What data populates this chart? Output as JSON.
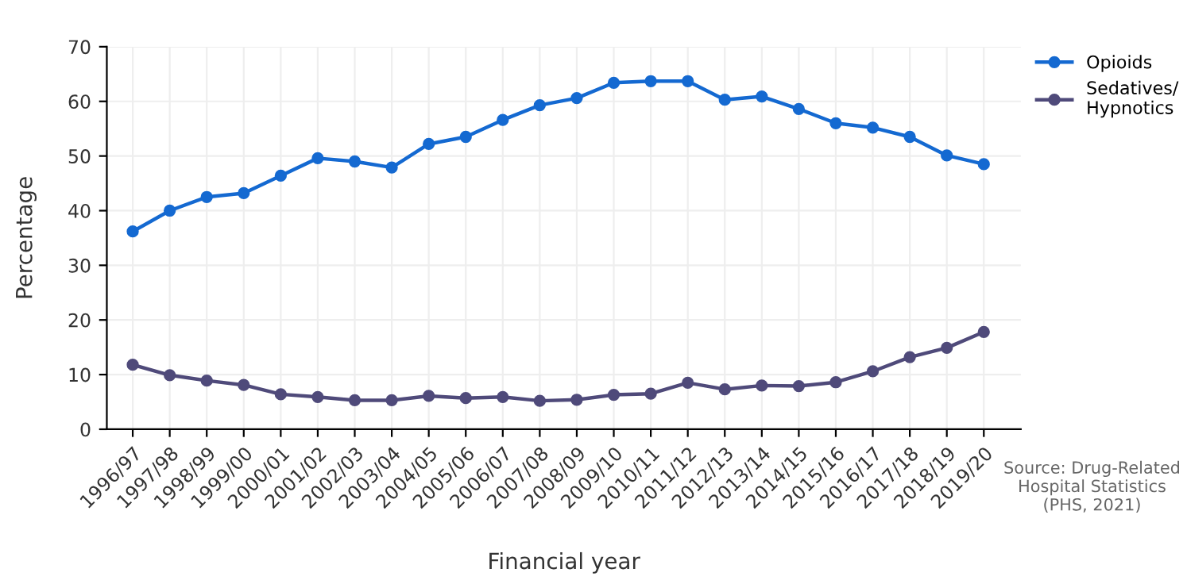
{
  "chart_data": {
    "type": "line",
    "xlabel": "Financial year",
    "ylabel": "Percentage",
    "categories": [
      "1996/97",
      "1997/98",
      "1998/99",
      "1999/00",
      "2000/01",
      "2001/02",
      "2002/03",
      "2003/04",
      "2004/05",
      "2005/06",
      "2006/07",
      "2007/08",
      "2008/09",
      "2009/10",
      "2010/11",
      "2011/12",
      "2012/13",
      "2013/14",
      "2014/15",
      "2015/16",
      "2016/17",
      "2017/18",
      "2018/19",
      "2019/20"
    ],
    "series": [
      {
        "name": "Opioids",
        "color": "#1469d1",
        "values": [
          36.2,
          40.0,
          42.5,
          43.2,
          46.4,
          49.6,
          49.0,
          47.9,
          52.2,
          53.5,
          56.6,
          59.3,
          60.6,
          63.4,
          63.7,
          63.7,
          60.3,
          60.9,
          58.6,
          56.0,
          55.2,
          53.5,
          50.1,
          48.5
        ]
      },
      {
        "name": "Sedatives/\nHypnotics",
        "color": "#4f4a7a",
        "values": [
          11.8,
          9.9,
          8.9,
          8.1,
          6.4,
          5.9,
          5.3,
          5.3,
          6.1,
          5.7,
          5.9,
          5.2,
          5.4,
          6.3,
          6.5,
          8.5,
          7.3,
          8.0,
          7.9,
          8.6,
          10.6,
          13.2,
          14.9,
          17.8
        ]
      }
    ],
    "ylim": [
      0,
      70
    ],
    "yticks": [
      0,
      10,
      20,
      30,
      40,
      50,
      60,
      70
    ],
    "grid": true,
    "legend": "top right",
    "marker": "circle",
    "line_style": "solid",
    "annotations": [
      "Source: Drug-Related\nHospital Statistics\n(PHS, 2021)"
    ]
  }
}
